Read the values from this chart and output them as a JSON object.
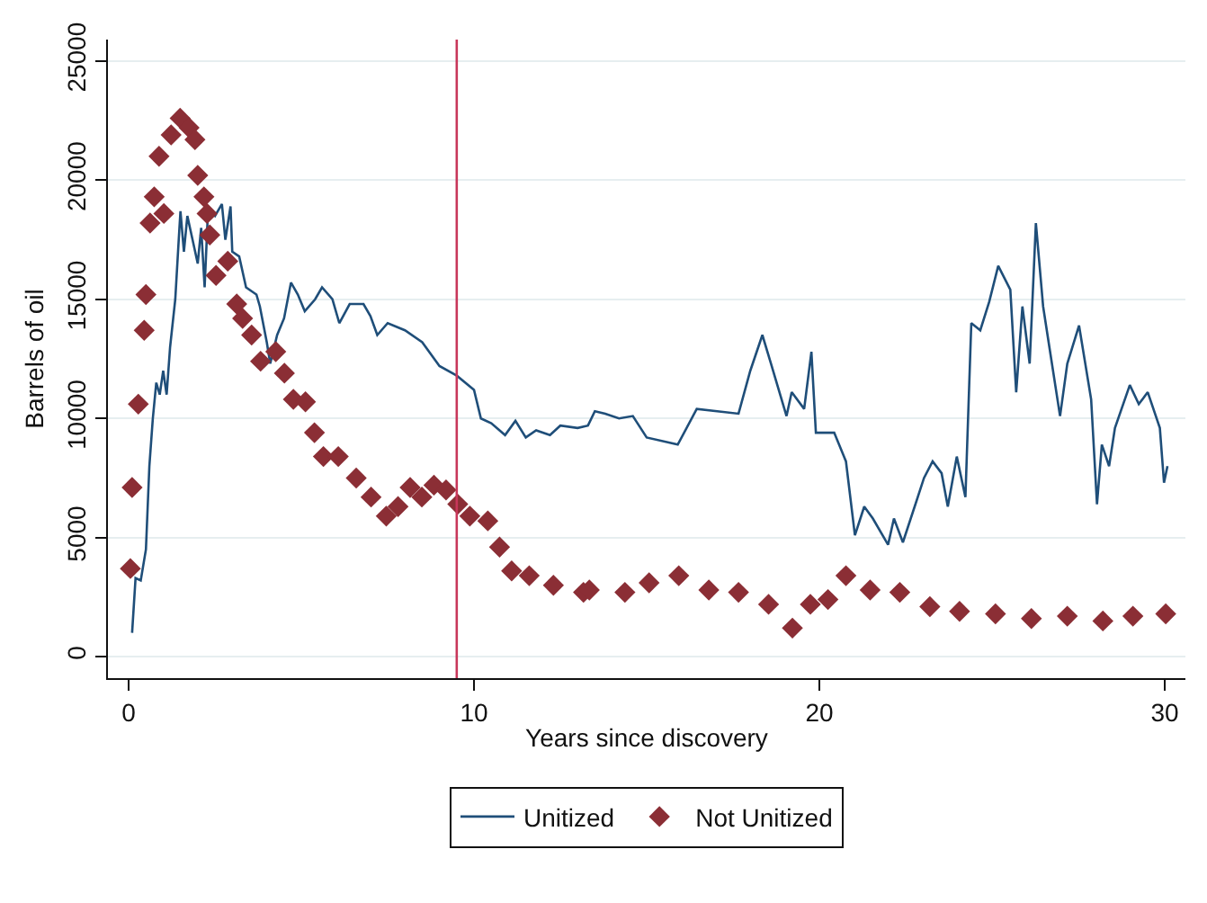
{
  "chart_data": {
    "type": "line",
    "xlabel": "Years since discovery",
    "ylabel": "Barrels of oil",
    "xlim": [
      -0.6,
      30.6
    ],
    "ylim": [
      -900,
      25900
    ],
    "xticks": [
      0,
      10,
      20,
      30
    ],
    "yticks": [
      0,
      5000,
      10000,
      15000,
      20000,
      25000
    ],
    "grid": "y",
    "legend": "bottom",
    "ref_lines": [
      {
        "axis": "x",
        "value": 9.5,
        "color": "#c8375a"
      }
    ],
    "series": [
      {
        "name": "Unitized",
        "color": "#1f4e79",
        "marker": "none",
        "line_style": "solid",
        "x": [
          0.1,
          0.2,
          0.35,
          0.5,
          0.6,
          0.7,
          0.8,
          0.9,
          1.0,
          1.1,
          1.2,
          1.35,
          1.45,
          1.5,
          1.6,
          1.7,
          1.85,
          2.0,
          2.1,
          2.2,
          2.3,
          2.5,
          2.7,
          2.8,
          2.95,
          3.0,
          3.2,
          3.4,
          3.7,
          3.8,
          4.0,
          4.1,
          4.3,
          4.5,
          4.7,
          4.9,
          5.1,
          5.4,
          5.6,
          5.9,
          6.1,
          6.4,
          6.8,
          7.0,
          7.2,
          7.5,
          8.0,
          8.5,
          9.0,
          9.5,
          10.0,
          10.2,
          10.5,
          10.9,
          11.2,
          11.5,
          11.8,
          12.2,
          12.5,
          13.0,
          13.3,
          13.5,
          13.8,
          14.2,
          14.6,
          15.0,
          15.9,
          16.45,
          17.66,
          18.0,
          18.35,
          18.6,
          19.05,
          19.2,
          19.56,
          19.77,
          19.9,
          20.43,
          20.77,
          21.03,
          21.3,
          21.55,
          21.99,
          22.16,
          22.42,
          22.76,
          23.03,
          23.28,
          23.54,
          23.72,
          23.98,
          24.23,
          24.4,
          24.66,
          24.92,
          25.18,
          25.53,
          25.7,
          25.88,
          26.09,
          26.27,
          26.48,
          26.66,
          26.97,
          27.18,
          27.52,
          27.87,
          28.04,
          28.18,
          28.39,
          28.56,
          28.99,
          29.25,
          29.51,
          29.86,
          29.98,
          30.08
        ],
        "values": [
          1000,
          3300,
          3200,
          4500,
          8000,
          10000,
          11500,
          11000,
          12000,
          11000,
          13000,
          15000,
          17500,
          18700,
          17000,
          18500,
          17500,
          16500,
          18000,
          15500,
          18800,
          18500,
          19000,
          17500,
          18900,
          17000,
          16800,
          15500,
          15200,
          14700,
          13200,
          12300,
          13500,
          14200,
          15700,
          15200,
          14500,
          15000,
          15500,
          15000,
          14000,
          14800,
          14800,
          14300,
          13500,
          14000,
          13700,
          13200,
          12200,
          11800,
          11200,
          10000,
          9800,
          9300,
          9900,
          9200,
          9500,
          9300,
          9700,
          9600,
          9700,
          10300,
          10200,
          10000,
          10100,
          9200,
          8900,
          10400,
          10200,
          12000,
          13500,
          12300,
          10100,
          11100,
          10400,
          12800,
          9400,
          9400,
          8200,
          5100,
          6300,
          5800,
          4700,
          5800,
          4800,
          6300,
          7500,
          8200,
          7700,
          6300,
          8400,
          6700,
          14000,
          13700,
          14900,
          16400,
          15400,
          11100,
          14700,
          12300,
          18200,
          14700,
          13000,
          10100,
          12300,
          13900,
          10800,
          6400,
          8900,
          8000,
          9600,
          11400,
          10600,
          11100,
          9600,
          7300,
          8000
        ]
      },
      {
        "name": "Not Unitized",
        "type": "scatter",
        "color": "#8b2e35",
        "marker": "diamond",
        "x": [
          0.05,
          0.1,
          0.28,
          0.45,
          0.5,
          0.62,
          0.74,
          0.88,
          1.02,
          1.23,
          1.49,
          1.75,
          1.92,
          2.0,
          2.18,
          2.27,
          2.35,
          2.53,
          2.87,
          3.13,
          3.3,
          3.56,
          3.82,
          4.26,
          4.51,
          4.77,
          5.12,
          5.38,
          5.64,
          6.07,
          6.59,
          7.02,
          7.46,
          7.8,
          8.15,
          8.49,
          8.84,
          9.19,
          9.53,
          9.88,
          10.4,
          10.74,
          11.09,
          11.6,
          12.3,
          13.17,
          13.34,
          14.37,
          15.07,
          15.93,
          16.8,
          17.66,
          18.53,
          19.22,
          19.74,
          20.25,
          20.77,
          21.47,
          22.33,
          23.2,
          24.06,
          25.1,
          26.14,
          27.18,
          28.21,
          29.08,
          30.03
        ],
        "values": [
          3700,
          7100,
          10600,
          13700,
          15200,
          18200,
          19300,
          21000,
          18600,
          21900,
          22600,
          22200,
          21700,
          20200,
          19300,
          18600,
          17700,
          16000,
          16600,
          14800,
          14200,
          13500,
          12400,
          12800,
          11900,
          10800,
          10700,
          9400,
          8400,
          8400,
          7500,
          6700,
          5900,
          6300,
          7100,
          6700,
          7200,
          7000,
          6400,
          5900,
          5700,
          4600,
          3600,
          3400,
          3000,
          2700,
          2800,
          2700,
          3100,
          3400,
          2800,
          2700,
          2200,
          1200,
          2200,
          2400,
          3400,
          2800,
          2700,
          2100,
          1900,
          1800,
          1600,
          1700,
          1500,
          1700,
          1800
        ]
      }
    ]
  }
}
